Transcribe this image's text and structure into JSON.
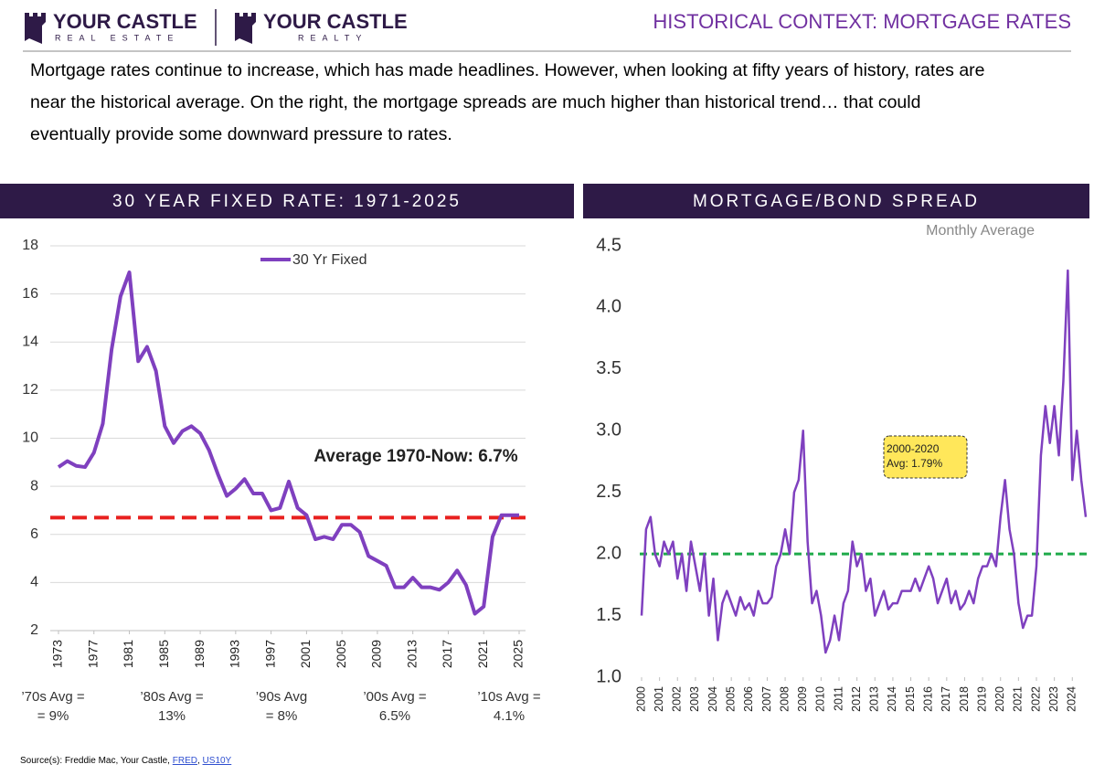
{
  "header": {
    "logo_left": {
      "name": "YOUR CASTLE",
      "tagline": "REAL ESTATE"
    },
    "logo_right": {
      "name": "YOUR CASTLE",
      "tagline": "REALTY"
    },
    "title": "HISTORICAL CONTEXT:  MORTGAGE RATES"
  },
  "intro": [
    "Mortgage rates continue to increase, which has made headlines. However, when looking at fifty years of history, rates are",
    "near the historical average. On the right, the mortgage spreads are much higher than historical trend… that could",
    "eventually provide some downward pressure to rates."
  ],
  "decade_averages": [
    [
      "’70s Avg =",
      "= 9%"
    ],
    [
      "’80s Avg =",
      "13%"
    ],
    [
      "’90s Avg",
      "= 8%"
    ],
    [
      "’00s Avg =",
      "6.5%"
    ],
    [
      "’10s Avg =",
      "4.1%"
    ]
  ],
  "source": {
    "text": "Source(s): Freddie Mac, Your Castle, ",
    "links": [
      "FRED",
      "US10Y"
    ]
  },
  "chart_data": [
    {
      "type": "line",
      "title": "30 YEAR FIXED RATE: 1971-2025",
      "x": [
        1973,
        1974,
        1975,
        1976,
        1977,
        1978,
        1979,
        1980,
        1981,
        1982,
        1983,
        1984,
        1985,
        1986,
        1987,
        1988,
        1989,
        1990,
        1991,
        1992,
        1993,
        1994,
        1995,
        1996,
        1997,
        1998,
        1999,
        2000,
        2001,
        2002,
        2003,
        2004,
        2005,
        2006,
        2007,
        2008,
        2009,
        2010,
        2011,
        2012,
        2013,
        2014,
        2015,
        2016,
        2017,
        2018,
        2019,
        2020,
        2021,
        2022,
        2023,
        2024,
        2025
      ],
      "series": [
        {
          "name": "30 Yr Fixed",
          "color": "#7f40bf",
          "values": [
            8.8,
            9.05,
            8.85,
            8.8,
            9.4,
            10.6,
            13.7,
            15.9,
            16.9,
            13.2,
            13.8,
            12.8,
            10.5,
            9.8,
            10.3,
            10.5,
            10.2,
            9.5,
            8.5,
            7.6,
            7.9,
            8.3,
            7.7,
            7.7,
            7.0,
            7.1,
            8.2,
            7.1,
            6.8,
            5.8,
            5.9,
            5.8,
            6.4,
            6.4,
            6.1,
            5.1,
            4.9,
            4.7,
            3.8,
            3.8,
            4.2,
            3.8,
            3.8,
            3.7,
            4.0,
            4.5,
            3.9,
            2.7,
            3.0,
            5.9,
            6.8,
            6.8,
            6.8
          ]
        }
      ],
      "xlim": [
        1973,
        2025
      ],
      "xticks": [
        1973,
        1977,
        1981,
        1985,
        1989,
        1993,
        1997,
        2001,
        2005,
        2009,
        2013,
        2017,
        2021,
        2025
      ],
      "ylim": [
        2,
        18
      ],
      "yticks": [
        2,
        4,
        6,
        8,
        10,
        12,
        14,
        16,
        18
      ],
      "grid": true,
      "legend": "top",
      "reference_line": {
        "value": 6.7,
        "color": "#e8201f"
      },
      "annotation": "Average 1970-Now:  6.7%"
    },
    {
      "type": "line",
      "title": "MORTGAGE/BOND SPREAD",
      "subtitle": "Monthly Average",
      "x": [
        2000,
        2000.25,
        2000.5,
        2000.75,
        2001,
        2001.25,
        2001.5,
        2001.75,
        2002,
        2002.25,
        2002.5,
        2002.75,
        2003,
        2003.25,
        2003.5,
        2003.75,
        2004,
        2004.25,
        2004.5,
        2004.75,
        2005,
        2005.25,
        2005.5,
        2005.75,
        2006,
        2006.25,
        2006.5,
        2006.75,
        2007,
        2007.25,
        2007.5,
        2007.75,
        2008,
        2008.25,
        2008.5,
        2008.75,
        2009,
        2009.25,
        2009.5,
        2009.75,
        2010,
        2010.25,
        2010.5,
        2010.75,
        2011,
        2011.25,
        2011.5,
        2011.75,
        2012,
        2012.25,
        2012.5,
        2012.75,
        2013,
        2013.25,
        2013.5,
        2013.75,
        2014,
        2014.25,
        2014.5,
        2014.75,
        2015,
        2015.25,
        2015.5,
        2015.75,
        2016,
        2016.25,
        2016.5,
        2016.75,
        2017,
        2017.25,
        2017.5,
        2017.75,
        2018,
        2018.25,
        2018.5,
        2018.75,
        2019,
        2019.25,
        2019.5,
        2019.75,
        2020,
        2020.25,
        2020.5,
        2020.75,
        2021,
        2021.25,
        2021.5,
        2021.75,
        2022,
        2022.25,
        2022.5,
        2022.75,
        2023,
        2023.25,
        2023.5,
        2023.75,
        2024,
        2024.25,
        2024.5,
        2024.75
      ],
      "color": "#7f40bf",
      "values": [
        1.5,
        2.2,
        2.3,
        2.0,
        1.9,
        2.1,
        2.0,
        2.1,
        1.8,
        2.0,
        1.7,
        2.1,
        1.9,
        1.7,
        2.0,
        1.5,
        1.8,
        1.3,
        1.6,
        1.7,
        1.6,
        1.5,
        1.65,
        1.55,
        1.6,
        1.5,
        1.7,
        1.6,
        1.6,
        1.65,
        1.9,
        2.0,
        2.2,
        2.0,
        2.5,
        2.6,
        3.0,
        2.1,
        1.6,
        1.7,
        1.5,
        1.2,
        1.3,
        1.5,
        1.3,
        1.6,
        1.7,
        2.1,
        1.9,
        2.0,
        1.7,
        1.8,
        1.5,
        1.6,
        1.7,
        1.55,
        1.6,
        1.6,
        1.7,
        1.7,
        1.7,
        1.8,
        1.7,
        1.8,
        1.9,
        1.8,
        1.6,
        1.7,
        1.8,
        1.6,
        1.7,
        1.55,
        1.6,
        1.7,
        1.6,
        1.8,
        1.9,
        1.9,
        2.0,
        1.9,
        2.3,
        2.6,
        2.2,
        2.0,
        1.6,
        1.4,
        1.5,
        1.5,
        1.9,
        2.8,
        3.2,
        2.9,
        3.2,
        2.8,
        3.4,
        4.3,
        2.6,
        3.0,
        2.6,
        2.3
      ],
      "xlim": [
        2000,
        2024.75
      ],
      "xticks": [
        2000,
        2001,
        2002,
        2003,
        2004,
        2005,
        2006,
        2007,
        2008,
        2009,
        2010,
        2011,
        2012,
        2013,
        2014,
        2015,
        2016,
        2017,
        2018,
        2019,
        2020,
        2021,
        2022,
        2023,
        2024
      ],
      "ylim": [
        1,
        4.5
      ],
      "yticks": [
        {
          "value": 1,
          "label": "1.0"
        },
        1.5,
        {
          "value": 2,
          "label": "2.0"
        },
        2.5,
        {
          "value": 3,
          "label": "3.0"
        },
        3.5,
        {
          "value": 4,
          "label": "4.0"
        },
        4.5
      ],
      "grid": false,
      "reference_line": {
        "value": 2.0,
        "color": "#1faa4a"
      },
      "annotation": [
        "2000-2020",
        "Avg: 1.79%"
      ]
    }
  ]
}
